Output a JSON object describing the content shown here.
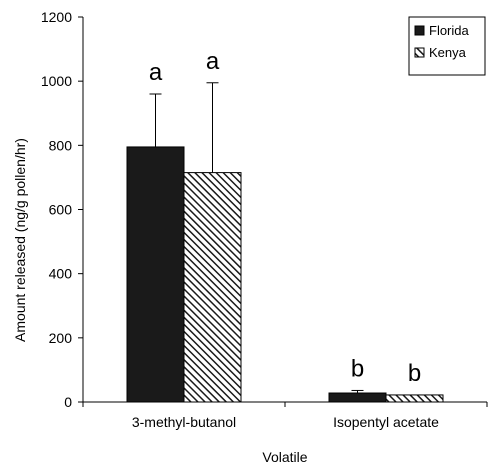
{
  "chart_data": {
    "type": "bar",
    "categories": [
      "3-methyl-butanol",
      "Isopentyl acetate"
    ],
    "series": [
      {
        "name": "Florida",
        "values": [
          795,
          28
        ],
        "error": [
          165,
          8
        ],
        "significance": [
          "a",
          "b"
        ],
        "fill": "solid",
        "color": "#1a1a1a"
      },
      {
        "name": "Kenya",
        "values": [
          715,
          22
        ],
        "error": [
          280,
          0
        ],
        "significance": [
          "a",
          "b"
        ],
        "fill": "hatched",
        "color": "#1a1a1a"
      }
    ],
    "xlabel": "Volatile",
    "ylabel": "Amount released (ng/g pollen/hr)",
    "ylim": [
      0,
      1200
    ],
    "yticks": [
      0,
      200,
      400,
      600,
      800,
      1000,
      1200
    ],
    "grid": false,
    "legend_position": "top-right",
    "error_bars": "upper"
  }
}
